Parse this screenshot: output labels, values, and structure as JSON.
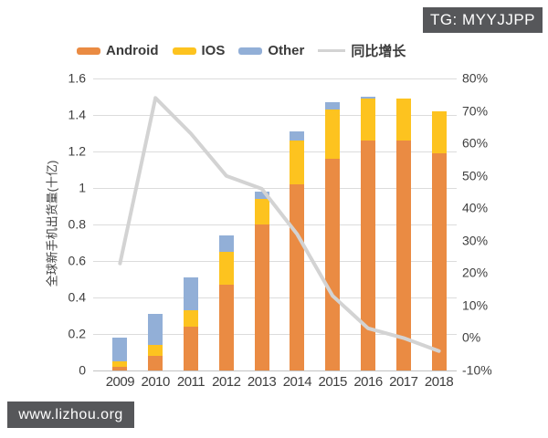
{
  "overlays": {
    "top_right_badge": "TG: MYYJJPP",
    "bottom_left_badge": "www.lizhou.org"
  },
  "chart_data": {
    "type": "combo_bar_line",
    "title": "",
    "categories": [
      "2009",
      "2010",
      "2011",
      "2012",
      "2013",
      "2014",
      "2015",
      "2016",
      "2017",
      "2018"
    ],
    "series": [
      {
        "name": "Android",
        "type": "bar",
        "color": "#ea8b43",
        "axis": "left",
        "values": [
          0.02,
          0.08,
          0.24,
          0.47,
          0.8,
          1.02,
          1.16,
          1.26,
          1.26,
          1.19
        ]
      },
      {
        "name": "IOS",
        "type": "bar",
        "color": "#fdc31f",
        "axis": "left",
        "values": [
          0.03,
          0.06,
          0.09,
          0.18,
          0.14,
          0.24,
          0.27,
          0.23,
          0.23,
          0.23
        ]
      },
      {
        "name": "Other",
        "type": "bar",
        "color": "#92afd7",
        "axis": "left",
        "values": [
          0.13,
          0.17,
          0.18,
          0.09,
          0.04,
          0.05,
          0.04,
          0.01,
          0,
          0
        ]
      },
      {
        "name": "同比增长",
        "type": "line",
        "color": "#d3d3d3",
        "axis": "right",
        "values": [
          23,
          74,
          63,
          50,
          46,
          32,
          13,
          3,
          0,
          -4
        ]
      }
    ],
    "bar_totals": [
      0.18,
      0.31,
      0.51,
      0.74,
      0.98,
      1.31,
      1.47,
      1.5,
      1.49,
      1.42
    ],
    "left_axis": {
      "title": "全球新手机出货量(十亿)",
      "min": 0,
      "max": 1.6,
      "step": 0.2,
      "tick_labels": [
        "1.6",
        "1.4",
        "1.2",
        "1",
        "0.8",
        "0.6",
        "0.4",
        "0.2",
        "0"
      ]
    },
    "right_axis": {
      "min": -10,
      "max": 80,
      "step": 10,
      "tick_labels": [
        "80%",
        "70%",
        "60%",
        "50%",
        "40%",
        "30%",
        "20%",
        "10%",
        "0%",
        "-10%"
      ]
    },
    "legend_position": "top",
    "grid": "horizontal",
    "stacked": true
  }
}
